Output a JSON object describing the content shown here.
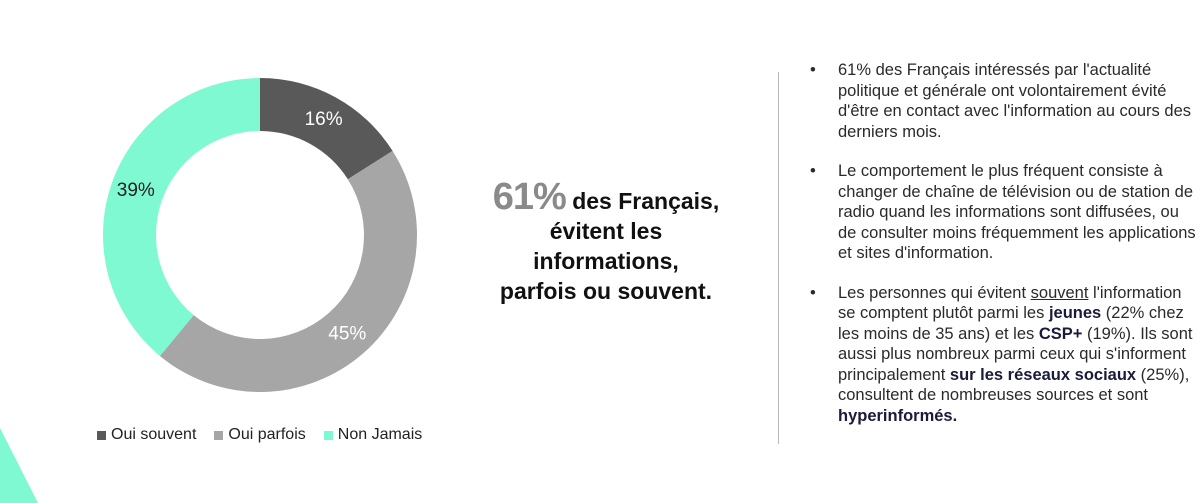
{
  "chart_data": {
    "type": "donut",
    "categories": [
      "Oui souvent",
      "Oui parfois",
      "Non Jamais"
    ],
    "values": [
      16,
      45,
      39
    ],
    "labels": [
      "16%",
      "45%",
      "39%"
    ],
    "colors": [
      "#595959",
      "#a6a6a6",
      "#7ff9d1"
    ],
    "label_colors": [
      "#ffffff",
      "#ffffff",
      "#222222"
    ],
    "legend_position": "bottom"
  },
  "legend": [
    {
      "label": "Oui souvent",
      "color": "#595959"
    },
    {
      "label": "Oui parfois",
      "color": "#a6a6a6"
    },
    {
      "label": "Non Jamais",
      "color": "#7ff9d1"
    }
  ],
  "headline": {
    "percent": "61%",
    "line1": "des Français,",
    "line2": "évitent les",
    "line3": "informations,",
    "line4": "parfois ou souvent."
  },
  "bullets": {
    "marker": "•",
    "b1": "61% des Français intéressés par l'actualité politique et générale ont volontairement évité d'être en contact avec l'information au cours des derniers mois.",
    "b2": "Le comportement le plus fréquent consiste à changer de chaîne de télévision ou de station de radio quand les informations sont diffusées, ou de consulter moins fréquemment les applications et sites d'information.",
    "b3": {
      "t1": "Les personnes qui évitent ",
      "u1": "souvent",
      "t2": " l'information se comptent plutôt parmi les ",
      "b_jeunes": "jeunes",
      "t3": " (22% chez les moins de 35 ans) et les ",
      "b_csp": "CSP+",
      "t4": " (19%). Ils sont aussi plus nombreux parmi ceux qui s'informent principalement ",
      "b_reseaux": "sur les réseaux sociaux",
      "t5": " (25%), consultent de nombreuses sources et sont ",
      "b_hyper": "hyperinformés."
    }
  },
  "colors": {
    "accent": "#7ff9d1",
    "dark_gray": "#595959",
    "light_gray": "#a6a6a6"
  }
}
